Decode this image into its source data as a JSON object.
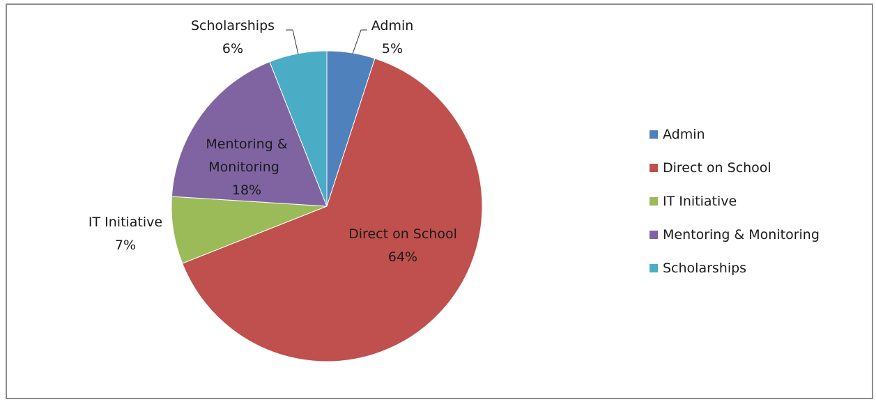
{
  "chart_data": {
    "type": "pie",
    "categories": [
      "Admin",
      "Direct on School",
      "IT Initiative",
      "Mentoring & Monitoring",
      "Scholarships"
    ],
    "values": [
      5,
      64,
      7,
      18,
      6
    ],
    "data_labels": [
      {
        "name": "Admin",
        "value": "5%"
      },
      {
        "name": "Direct on School",
        "value": "64%"
      },
      {
        "name": "IT Initiative",
        "value": "7%"
      },
      {
        "name": "Mentoring &",
        "name2": "Monitoring",
        "value": "18%"
      },
      {
        "name": "Scholarships",
        "value": "6%"
      }
    ],
    "colors": [
      "#4f81bd",
      "#c0504d",
      "#9bbb59",
      "#8064a2",
      "#4bacc6"
    ],
    "legend_position": "right"
  }
}
